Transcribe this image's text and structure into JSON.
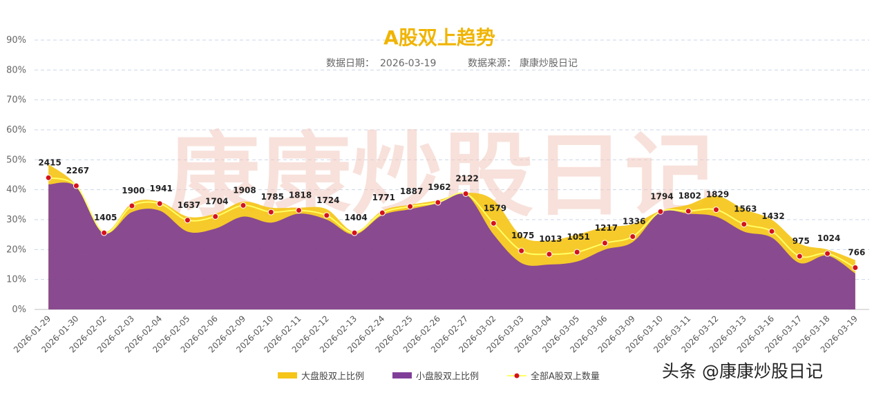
{
  "colors": {
    "large_cap": "#f5c518",
    "small_cap": "#7f3f98",
    "all_line": "#ffff66",
    "marker": "#d4121b",
    "title": "#f0b400",
    "watermark": "#f3c9bf",
    "grid": "#c9d6e8"
  },
  "watermark": {
    "text": "康康炒股日记"
  },
  "brand": {
    "text": "头条 @康康炒股日记"
  },
  "chart_data": {
    "type": "area",
    "title": "A股双上趋势",
    "subtitle_date_label": "数据日期：",
    "subtitle_date": "2026-03-19",
    "subtitle_source_label": "数据来源：",
    "subtitle_source": "康康炒股日记",
    "ylim": [
      0,
      90
    ],
    "yticks": [
      "0%",
      "10%",
      "20%",
      "30%",
      "40%",
      "50%",
      "60%",
      "70%",
      "80%",
      "90%"
    ],
    "categories": [
      "2026-01-29",
      "2026-01-30",
      "2026-02-02",
      "2026-02-03",
      "2026-02-04",
      "2026-02-05",
      "2026-02-06",
      "2026-02-09",
      "2026-02-10",
      "2026-02-11",
      "2026-02-12",
      "2026-02-13",
      "2026-02-24",
      "2026-02-25",
      "2026-02-26",
      "2026-02-27",
      "2026-03-02",
      "2026-03-03",
      "2026-03-04",
      "2026-03-05",
      "2026-03-06",
      "2026-03-09",
      "2026-03-10",
      "2026-03-11",
      "2026-03-12",
      "2026-03-13",
      "2026-03-16",
      "2026-03-17",
      "2026-03-18",
      "2026-03-19"
    ],
    "series": [
      {
        "name": "大盘股双上比例",
        "type": "area",
        "values": [
          48.5,
          41.5,
          26,
          35.5,
          36,
          31,
          32,
          36,
          34,
          34,
          33.5,
          26,
          33,
          35,
          36.5,
          39,
          36.5,
          24.5,
          23,
          25,
          27.5,
          28.5,
          33,
          35,
          38,
          33.5,
          30,
          22,
          20,
          16.5
        ]
      },
      {
        "name": "小盘股双上比例",
        "type": "area",
        "values": [
          41.8,
          41,
          25.5,
          32.5,
          33,
          26,
          27,
          31,
          29,
          32,
          30,
          25,
          31.5,
          33.5,
          35.5,
          38.5,
          25,
          15.5,
          15,
          16,
          20,
          22.5,
          32.5,
          32,
          31,
          26,
          24,
          15.5,
          18,
          12
        ]
      },
      {
        "name": "全部A股双上数量",
        "type": "line",
        "values": [
          2415,
          2267,
          1405,
          1900,
          1941,
          1637,
          1704,
          1908,
          1785,
          1818,
          1724,
          1404,
          1771,
          1887,
          1962,
          2122,
          1579,
          1075,
          1013,
          1051,
          1217,
          1336,
          1794,
          1802,
          1829,
          1563,
          1432,
          975,
          1024,
          766
        ],
        "labels": [
          "2415",
          "2267",
          "1405",
          "1900",
          "1941",
          "1637",
          "1704",
          "1908",
          "1785",
          "1818",
          "1724",
          "1404",
          "1771",
          "1887",
          "1962",
          "2122",
          "1579",
          "1075",
          "1013",
          "1051",
          "1217",
          "1336",
          "1794",
          "1802",
          "1829",
          "1563",
          "1432",
          "975",
          "1024",
          "766"
        ]
      }
    ]
  }
}
